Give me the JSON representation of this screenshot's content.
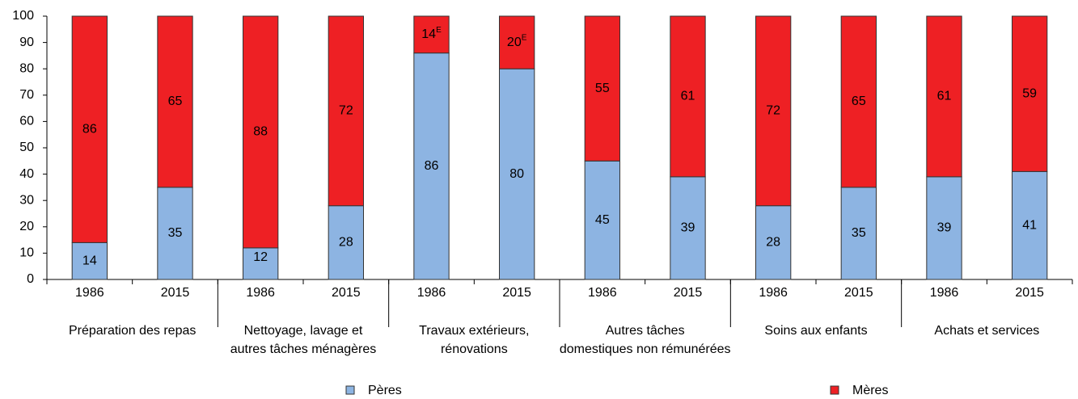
{
  "chart_data": {
    "type": "stacked_bar",
    "categories": [
      "1986",
      "2015",
      "1986",
      "2015",
      "1986",
      "2015",
      "1986",
      "2015",
      "1986",
      "2015",
      "1986",
      "2015"
    ],
    "groups": [
      {
        "label": [
          "Préparation  des repas"
        ],
        "size": 2
      },
      {
        "label": [
          "Nettoyage, lavage et",
          "autres tâches ménagères"
        ],
        "size": 2
      },
      {
        "label": [
          "Travaux extérieurs,",
          "rénovations"
        ],
        "size": 2
      },
      {
        "label": [
          "Autres tâches",
          "domestiques non rémunérées"
        ],
        "size": 2
      },
      {
        "label": [
          "Soins aux enfants"
        ],
        "size": 2
      },
      {
        "label": [
          "Achats et services"
        ],
        "size": 2
      }
    ],
    "series": [
      {
        "name": "Pères",
        "color": "#8db4e2",
        "values": [
          14,
          35,
          12,
          28,
          86,
          80,
          45,
          39,
          28,
          35,
          39,
          41
        ]
      },
      {
        "name": "Mères",
        "color": "#ee2024",
        "values": [
          86,
          65,
          88,
          72,
          14,
          20,
          55,
          61,
          72,
          65,
          61,
          59
        ],
        "value_labels": [
          "86",
          "65",
          "88",
          "72",
          "14E",
          "20E",
          "55",
          "61",
          "72",
          "65",
          "61",
          "59"
        ]
      }
    ],
    "ylim": [
      0,
      100
    ],
    "yticks": [
      0,
      10,
      20,
      30,
      40,
      50,
      60,
      70,
      80,
      90,
      100
    ],
    "grid": false,
    "legend": "bottom"
  }
}
